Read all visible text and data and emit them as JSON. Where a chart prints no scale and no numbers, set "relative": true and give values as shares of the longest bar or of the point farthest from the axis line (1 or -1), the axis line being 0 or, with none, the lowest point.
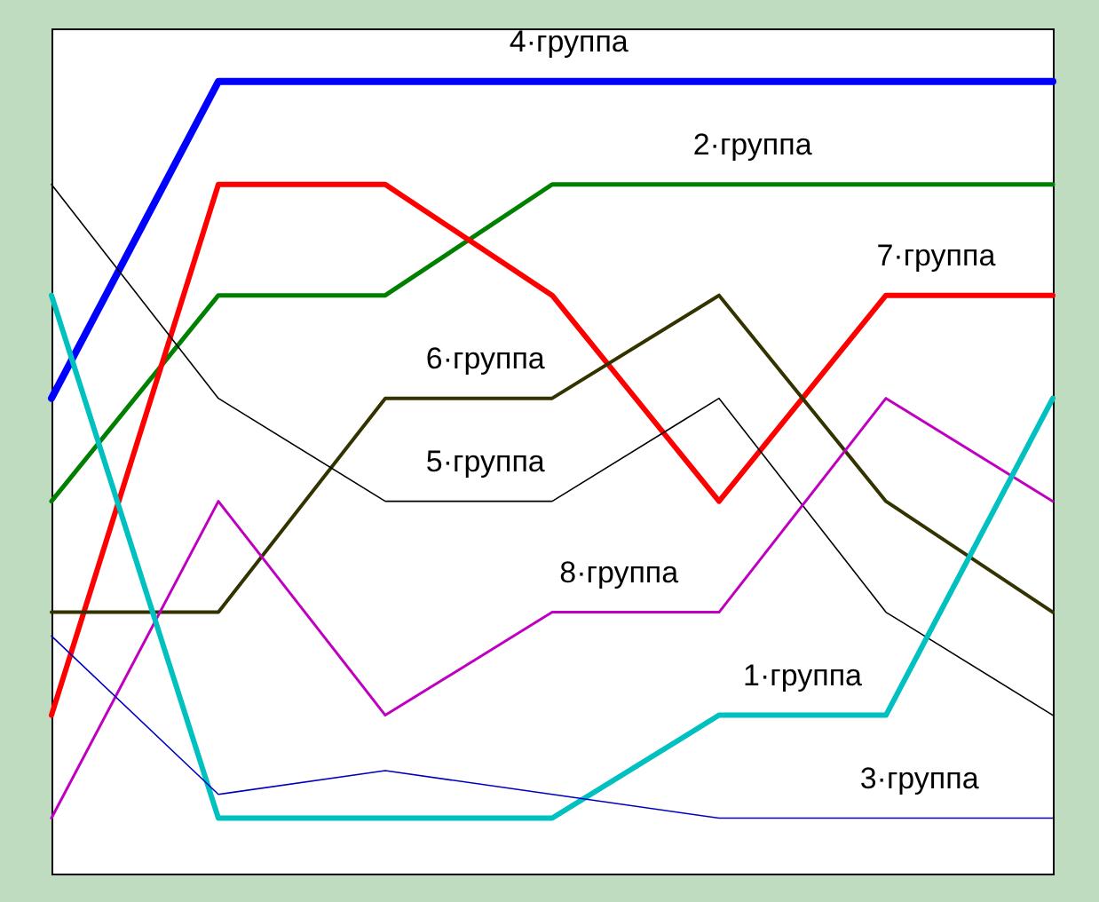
{
  "chart_data": {
    "type": "line",
    "relative": true,
    "grid": false,
    "marker": "none",
    "line_style": "solid",
    "categories": [
      null,
      null,
      null,
      null,
      null,
      null,
      null
    ],
    "series": [
      {
        "name": "4·группа",
        "color": "#0000ff",
        "values": [
          0.6,
          1,
          1,
          1,
          1,
          1,
          1
        ]
      },
      {
        "name": "2·группа",
        "color": "#008000",
        "values": [
          0.47,
          0.73,
          0.73,
          0.87,
          0.87,
          0.87,
          0.87
        ]
      },
      {
        "name": "7·группа",
        "color": "#ff0000",
        "values": [
          0.2,
          0.87,
          0.87,
          0.73,
          0.47,
          0.73,
          0.73
        ]
      },
      {
        "name": "6·группа",
        "color": "#333300",
        "values": [
          0.33,
          0.33,
          0.6,
          0.6,
          0.73,
          0.47,
          0.33
        ]
      },
      {
        "name": "5·группа",
        "color": "#000000",
        "values": [
          0.87,
          0.6,
          0.47,
          0.47,
          0.6,
          0.33,
          0.2
        ]
      },
      {
        "name": "8·группа",
        "color": "#c000c0",
        "values": [
          0.07,
          0.47,
          0.2,
          0.33,
          0.33,
          0.6,
          0.47
        ]
      },
      {
        "name": "1·группа",
        "color": "#00c0c0",
        "values": [
          0.73,
          0.07,
          0.07,
          0.07,
          0.2,
          0.2,
          0.6
        ]
      },
      {
        "name": "3·группа",
        "color": "#0000c0",
        "values": [
          0.3,
          0.1,
          0.13,
          0.1,
          0.07,
          0.07,
          0.07
        ]
      }
    ]
  }
}
